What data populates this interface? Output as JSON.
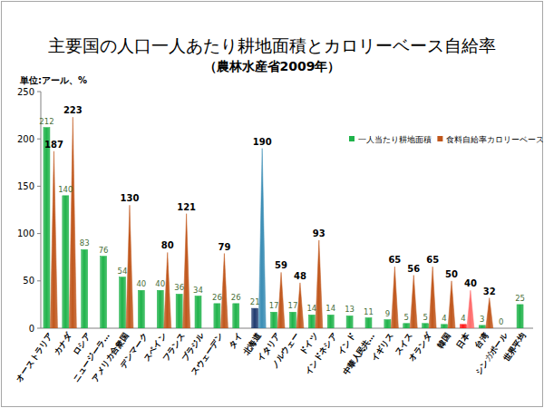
{
  "chart_data": {
    "type": "bar",
    "title": "主要国の人口一人あたり耕地面積とカロリーベース自給率",
    "subtitle": "（農林水産省2009年）",
    "y_label": "単位:アール、%",
    "categories": [
      "オーストラリア",
      "カナダ",
      "ロシア",
      "ニュージーラ…",
      "アメリカ合衆国",
      "デンマーク",
      "スペイン",
      "フランス",
      "ブラジル",
      "スウェーデン",
      "タイ",
      "北海道",
      "イタリア",
      "ノルウェー",
      "ドイツ",
      "インドネシア",
      "インド",
      "中華人民共…",
      "イギリス",
      "スイス",
      "オランダ",
      "韓国",
      "日本",
      "台湾",
      "シンガポール",
      "世界平均"
    ],
    "series": [
      {
        "name": "一人当たり耕地面積",
        "color": "#1fb34a",
        "colors": [
          "#1fb34a",
          "#1fb34a",
          "#1fb34a",
          "#1fb34a",
          "#1fb34a",
          "#1fb34a",
          "#1fb34a",
          "#1fb34a",
          "#1fb34a",
          "#1fb34a",
          "#1fb34a",
          "#1f3a6e",
          "#1fb34a",
          "#1fb34a",
          "#1fb34a",
          "#1fb34a",
          "#1fb34a",
          "#1fb34a",
          "#1fb34a",
          "#1fb34a",
          "#1fb34a",
          "#1fb34a",
          "#ff1a1a",
          "#1fb34a",
          "#1fb34a",
          "#1fb34a"
        ],
        "values": [
          212,
          140,
          83,
          76,
          54,
          40,
          40,
          36,
          34,
          26,
          26,
          21,
          17,
          17,
          14,
          14,
          13,
          11,
          9,
          5,
          5,
          4,
          4,
          3,
          0,
          25
        ]
      },
      {
        "name": "食料自給率カロリーベース",
        "color": "#c0561b",
        "colors": [
          "#c0561b",
          "#c0561b",
          "#c0561b",
          "#c0561b",
          "#c0561b",
          "#c0561b",
          "#c0561b",
          "#c0561b",
          "#c0561b",
          "#c0561b",
          "#c0561b",
          "#3a8db5",
          "#c0561b",
          "#c0561b",
          "#c0561b",
          "#c0561b",
          "#c0561b",
          "#c0561b",
          "#c0561b",
          "#c0561b",
          "#c0561b",
          "#c0561b",
          "#ff6b6b",
          "#c0561b",
          "#c0561b",
          "#c0561b"
        ],
        "values": [
          187,
          223,
          null,
          null,
          130,
          null,
          80,
          121,
          null,
          79,
          null,
          190,
          59,
          48,
          93,
          null,
          null,
          null,
          65,
          56,
          65,
          50,
          40,
          32,
          null,
          null
        ]
      }
    ],
    "ylim": [
      0,
      250
    ],
    "yticks": [
      0,
      50,
      100,
      150,
      200,
      250
    ],
    "grid": false,
    "legend": "right",
    "data_labels": true
  }
}
